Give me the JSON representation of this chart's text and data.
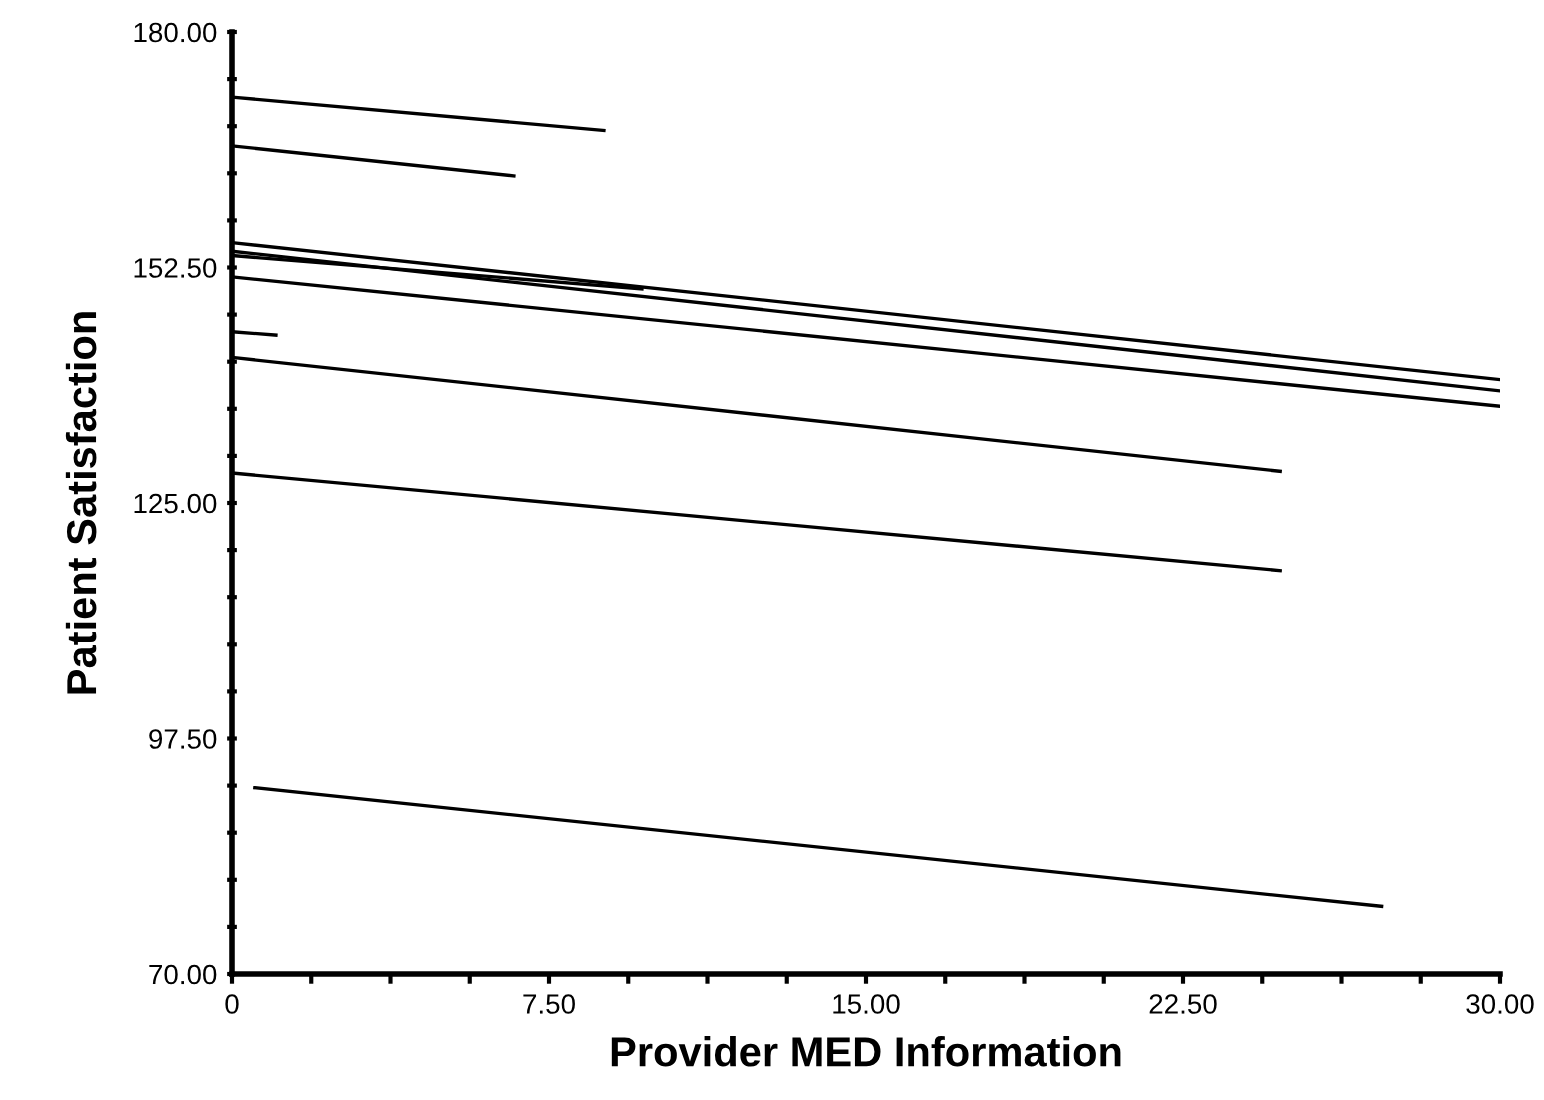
{
  "chart_data": {
    "type": "line",
    "xlabel": "Provider MED Information",
    "ylabel": "Patient Satisfaction",
    "xlim": [
      0,
      30
    ],
    "ylim": [
      70,
      180
    ],
    "xticks": [
      {
        "value": 0,
        "label": "0"
      },
      {
        "value": 1.875,
        "label": null
      },
      {
        "value": 3.75,
        "label": null
      },
      {
        "value": 5.625,
        "label": null
      },
      {
        "value": 7.5,
        "label": "7.50"
      },
      {
        "value": 9.375,
        "label": null
      },
      {
        "value": 11.25,
        "label": null
      },
      {
        "value": 13.125,
        "label": null
      },
      {
        "value": 15,
        "label": "15.00"
      },
      {
        "value": 16.875,
        "label": null
      },
      {
        "value": 18.75,
        "label": null
      },
      {
        "value": 20.625,
        "label": null
      },
      {
        "value": 22.5,
        "label": "22.50"
      },
      {
        "value": 24.375,
        "label": null
      },
      {
        "value": 26.25,
        "label": null
      },
      {
        "value": 28.125,
        "label": null
      },
      {
        "value": 30,
        "label": "30.00"
      }
    ],
    "yticks": [
      {
        "value": 70,
        "label": "70.00"
      },
      {
        "value": 75.5,
        "label": null
      },
      {
        "value": 81,
        "label": null
      },
      {
        "value": 86.5,
        "label": null
      },
      {
        "value": 92,
        "label": null
      },
      {
        "value": 97.5,
        "label": "97.50"
      },
      {
        "value": 103,
        "label": null
      },
      {
        "value": 108.5,
        "label": null
      },
      {
        "value": 114,
        "label": null
      },
      {
        "value": 119.5,
        "label": null
      },
      {
        "value": 125,
        "label": "125.00"
      },
      {
        "value": 130.5,
        "label": null
      },
      {
        "value": 136,
        "label": null
      },
      {
        "value": 141.5,
        "label": null
      },
      {
        "value": 147,
        "label": null
      },
      {
        "value": 152.5,
        "label": "152.50"
      },
      {
        "value": 158,
        "label": null
      },
      {
        "value": 163.5,
        "label": null
      },
      {
        "value": 169,
        "label": null
      },
      {
        "value": 174.5,
        "label": null
      },
      {
        "value": 180,
        "label": "180.00"
      }
    ],
    "grid": false,
    "legend": false,
    "marker": "none",
    "line_style": "solid",
    "series": [
      {
        "color": "#000000",
        "x": [
          0,
          8.8
        ],
        "values": [
          172.4,
          168.5
        ]
      },
      {
        "color": "#000000",
        "x": [
          0,
          6.67
        ],
        "values": [
          166.7,
          163.2
        ]
      },
      {
        "color": "#000000",
        "x": [
          0,
          30
        ],
        "values": [
          155.4,
          139.4
        ]
      },
      {
        "color": "#000000",
        "x": [
          0,
          30
        ],
        "values": [
          154.4,
          138.1
        ]
      },
      {
        "color": "#000000",
        "x": [
          0,
          9.7
        ],
        "values": [
          153.9,
          150.0
        ]
      },
      {
        "color": "#000000",
        "x": [
          0,
          30
        ],
        "values": [
          151.4,
          136.3
        ]
      },
      {
        "color": "#000000",
        "x": [
          0,
          1.04
        ],
        "values": [
          145.0,
          144.6
        ]
      },
      {
        "color": "#000000",
        "x": [
          0,
          24.8
        ],
        "values": [
          142.0,
          128.7
        ]
      },
      {
        "color": "#000000",
        "x": [
          0,
          24.8
        ],
        "values": [
          128.5,
          117.1
        ]
      },
      {
        "color": "#000000",
        "x": [
          0.54,
          27.2
        ],
        "values": [
          91.75,
          77.9
        ]
      }
    ]
  }
}
